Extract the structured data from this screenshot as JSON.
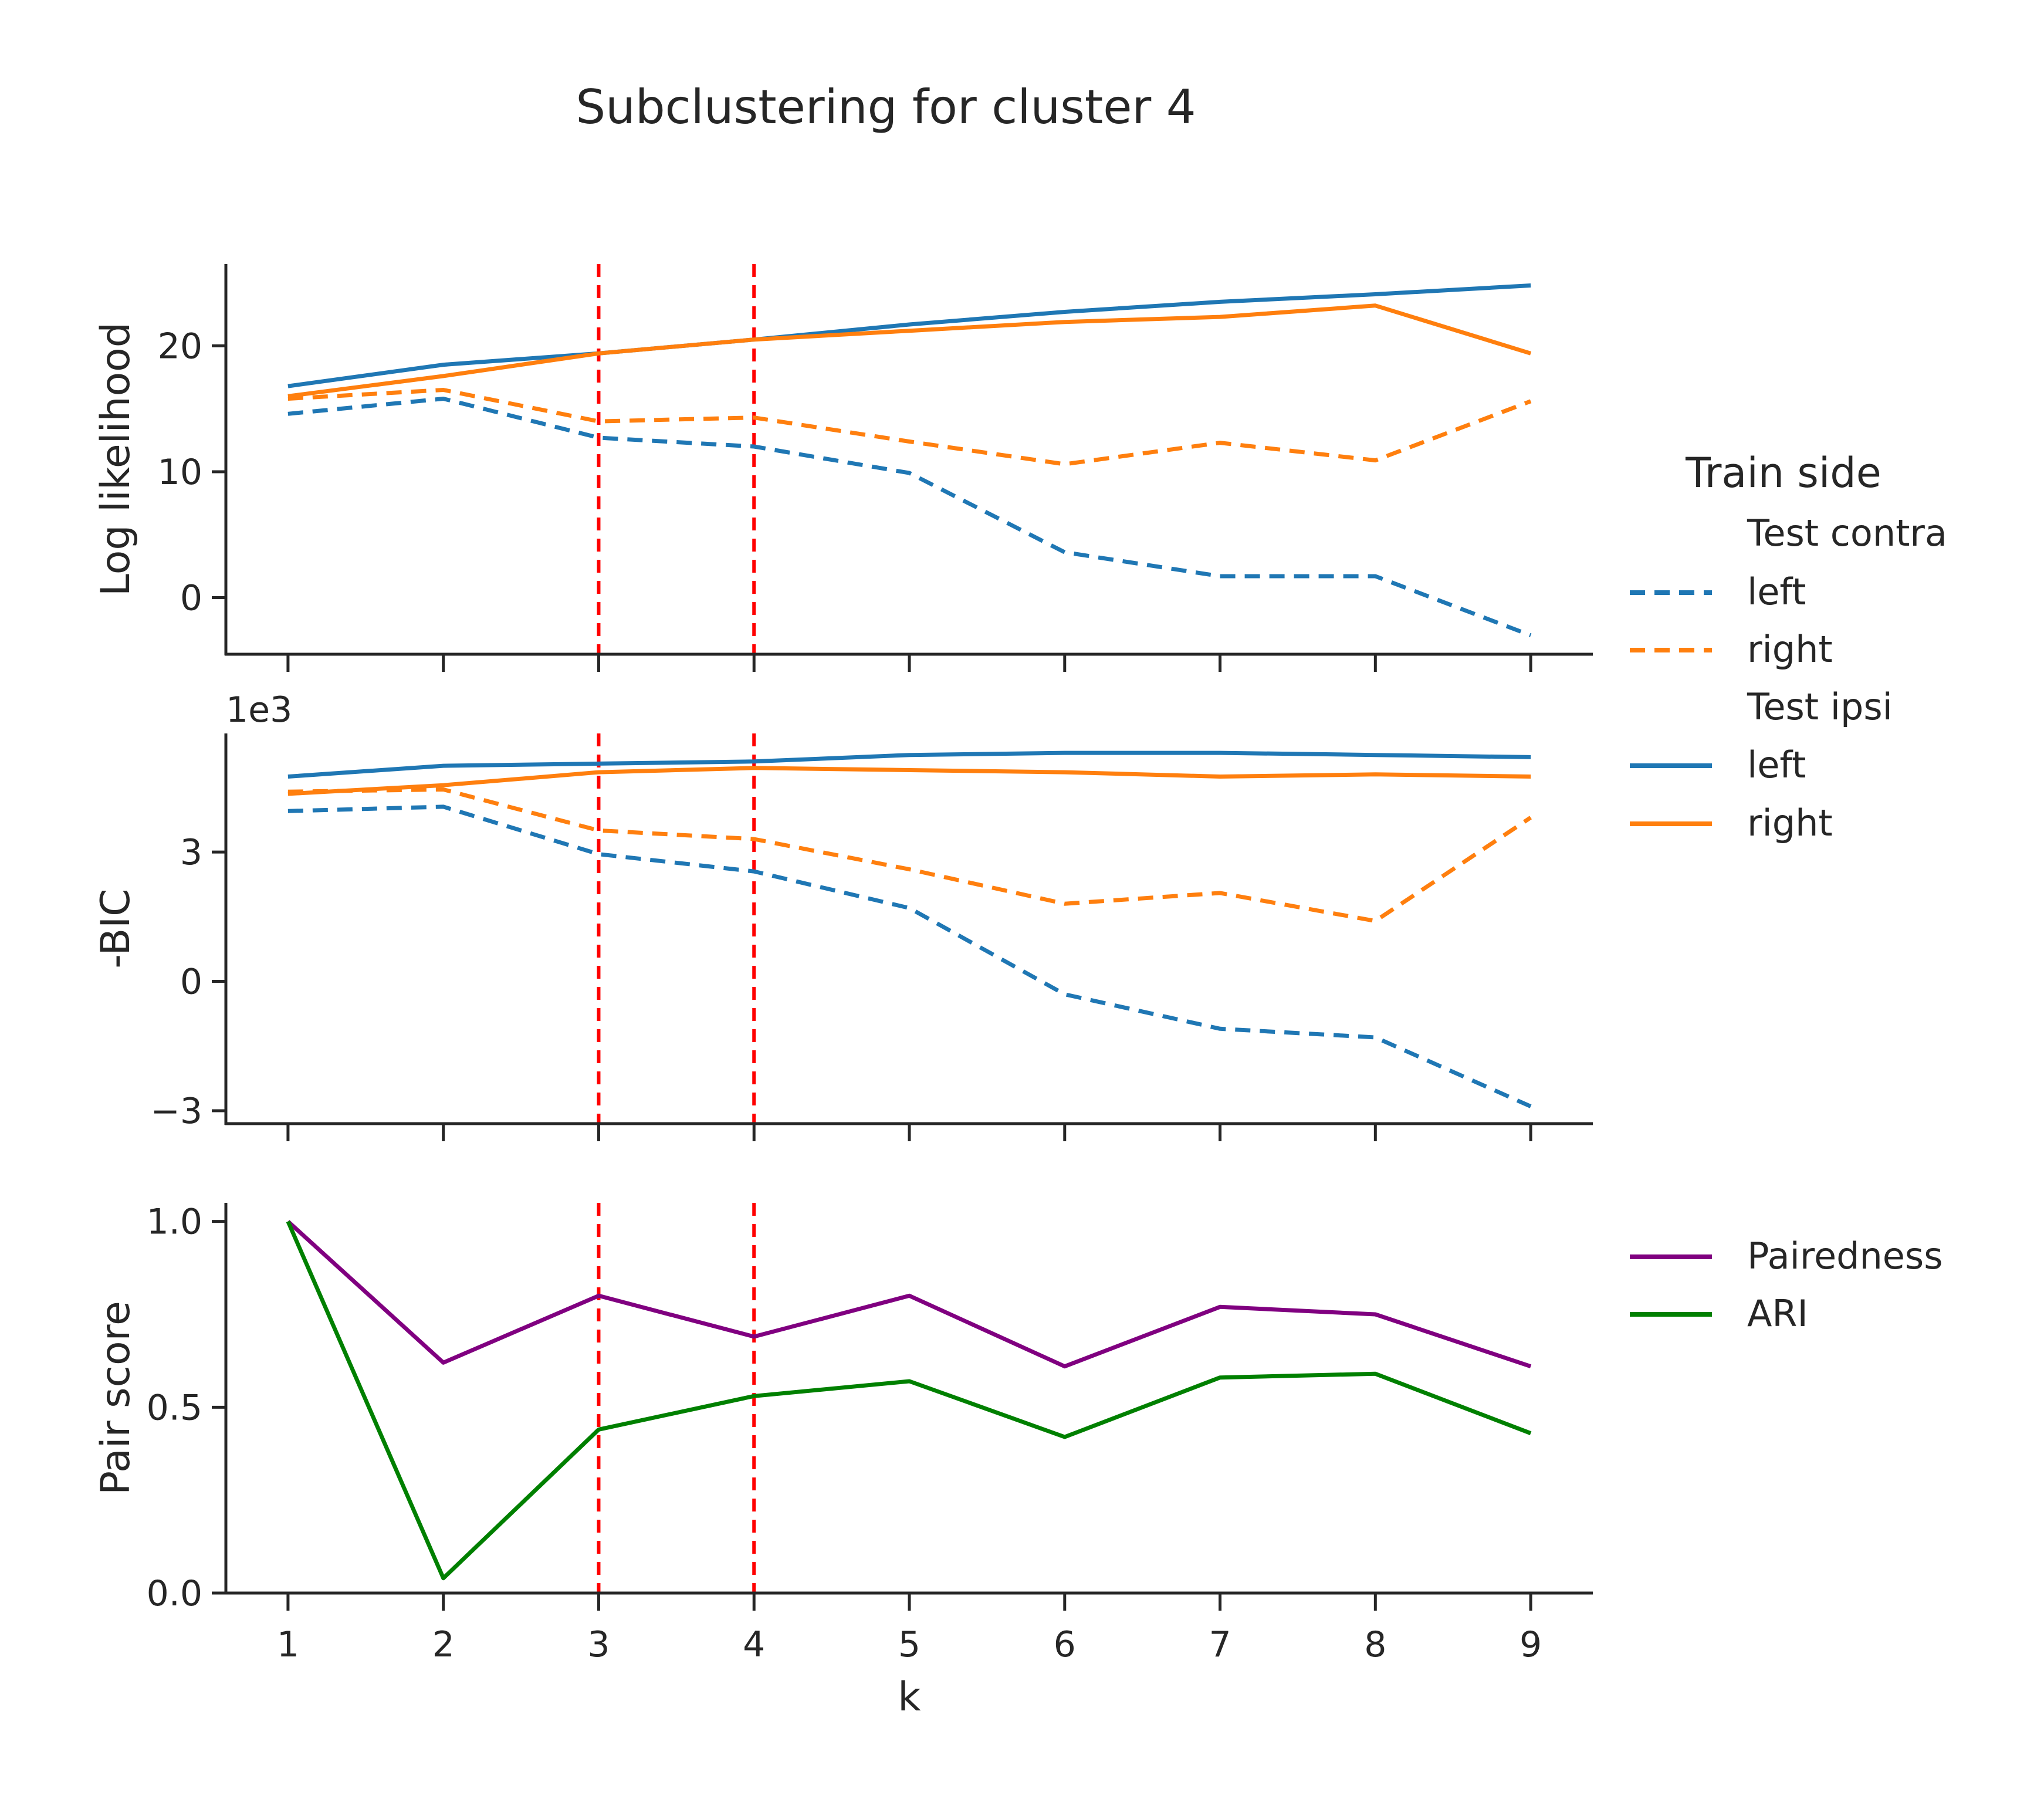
{
  "figure": {
    "title": "Subclustering for cluster 4"
  },
  "legend_top": {
    "title": "Train side",
    "groups": [
      {
        "label": "Test contra",
        "entries": [
          {
            "label": "left"
          },
          {
            "label": "right"
          }
        ]
      },
      {
        "label": "Test ipsi",
        "entries": [
          {
            "label": "left"
          },
          {
            "label": "right"
          }
        ]
      }
    ]
  },
  "legend_bottom": {
    "entries": [
      {
        "label": "Pairedness"
      },
      {
        "label": "ARI"
      }
    ]
  },
  "colors": {
    "left": "#1f77b4",
    "right": "#ff7f0e",
    "pairedness": "#800080",
    "ari": "#008000",
    "kline": "#ff0000",
    "axis": "#262626"
  },
  "chart_data": [
    {
      "type": "line",
      "ylabel": "Log likelihood",
      "xlabel": "",
      "x": [
        1,
        2,
        3,
        4,
        5,
        6,
        7,
        8,
        9
      ],
      "xlim": [
        0.6,
        9.4
      ],
      "ylim": [
        -4.5,
        26.5
      ],
      "yticks": [
        0,
        10,
        20
      ],
      "ytick_labels": [
        "0",
        "10",
        "20"
      ],
      "vlines": [
        3,
        4
      ],
      "series": [
        {
          "name": "left",
          "group": "Test contra",
          "style": "dashed",
          "color_key": "left",
          "values": [
            14.6,
            15.8,
            12.7,
            12.0,
            9.9,
            3.6,
            1.7,
            1.7,
            -3.0
          ]
        },
        {
          "name": "right",
          "group": "Test contra",
          "style": "dashed",
          "color_key": "right",
          "values": [
            15.8,
            16.5,
            14.0,
            14.3,
            12.4,
            10.6,
            12.3,
            10.9,
            15.6
          ]
        },
        {
          "name": "left",
          "group": "Test ipsi",
          "style": "solid",
          "color_key": "left",
          "values": [
            16.8,
            18.5,
            19.4,
            20.5,
            21.7,
            22.7,
            23.5,
            24.1,
            24.8
          ]
        },
        {
          "name": "right",
          "group": "Test ipsi",
          "style": "solid",
          "color_key": "right",
          "values": [
            16.0,
            17.6,
            19.4,
            20.5,
            21.2,
            21.9,
            22.3,
            23.2,
            19.4
          ]
        }
      ]
    },
    {
      "type": "line",
      "ylabel": "-BIC",
      "xlabel": "",
      "offset_label": "1e3",
      "x": [
        1,
        2,
        3,
        4,
        5,
        6,
        7,
        8,
        9
      ],
      "xlim": [
        0.6,
        9.4
      ],
      "ylim": [
        -3.3,
        5.75
      ],
      "yticks": [
        -3,
        0,
        3
      ],
      "ytick_labels": [
        "−3",
        "0",
        "3"
      ],
      "vlines": [
        3,
        4
      ],
      "series": [
        {
          "name": "left",
          "group": "Test contra",
          "style": "dashed",
          "color_key": "left",
          "values": [
            3.95,
            4.05,
            2.95,
            2.55,
            1.7,
            -0.3,
            -1.1,
            -1.3,
            -2.9
          ]
        },
        {
          "name": "right",
          "group": "Test contra",
          "style": "dashed",
          "color_key": "right",
          "values": [
            4.4,
            4.45,
            3.5,
            3.3,
            2.6,
            1.8,
            2.05,
            1.4,
            3.8
          ]
        },
        {
          "name": "left",
          "group": "Test ipsi",
          "style": "solid",
          "color_key": "left",
          "values": [
            4.75,
            5.0,
            5.05,
            5.1,
            5.25,
            5.3,
            5.3,
            5.25,
            5.2
          ]
        },
        {
          "name": "right",
          "group": "Test ipsi",
          "style": "solid",
          "color_key": "right",
          "values": [
            4.35,
            4.55,
            4.85,
            4.95,
            4.9,
            4.85,
            4.75,
            4.8,
            4.75
          ]
        }
      ]
    },
    {
      "type": "line",
      "ylabel": "Pair score",
      "xlabel": "k",
      "x": [
        1,
        2,
        3,
        4,
        5,
        6,
        7,
        8,
        9
      ],
      "xlim": [
        0.6,
        9.4
      ],
      "ylim": [
        0.0,
        1.05
      ],
      "yticks": [
        0.0,
        0.5,
        1.0
      ],
      "ytick_labels": [
        "0.0",
        "0.5",
        "1.0"
      ],
      "xtick_labels": [
        "1",
        "2",
        "3",
        "4",
        "5",
        "6",
        "7",
        "8",
        "9"
      ],
      "vlines": [
        3,
        4
      ],
      "series": [
        {
          "name": "Pairedness",
          "style": "solid",
          "color_key": "pairedness",
          "values": [
            1.0,
            0.62,
            0.8,
            0.69,
            0.8,
            0.61,
            0.77,
            0.75,
            0.61
          ]
        },
        {
          "name": "ARI",
          "style": "solid",
          "color_key": "ari",
          "values": [
            1.0,
            0.04,
            0.44,
            0.53,
            0.57,
            0.42,
            0.58,
            0.59,
            0.43
          ]
        }
      ]
    }
  ]
}
